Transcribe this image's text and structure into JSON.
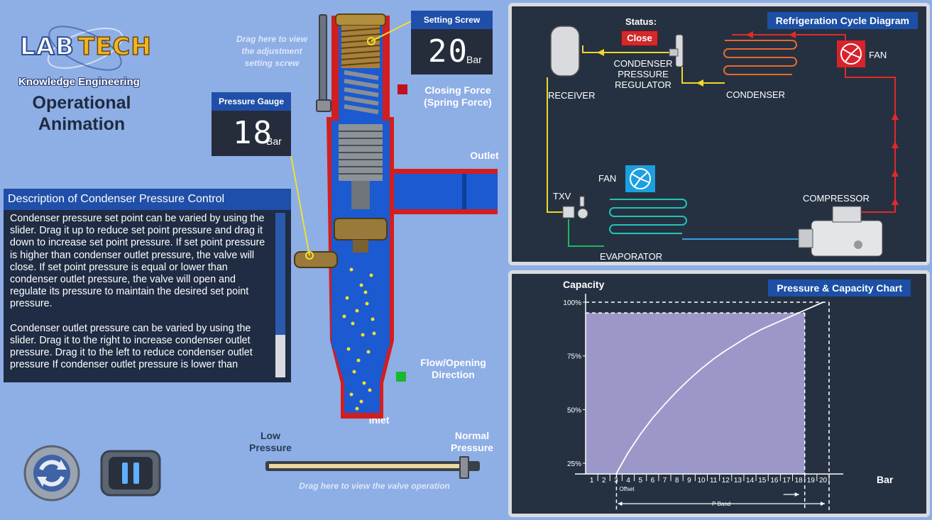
{
  "logo": {
    "part1": "LAB",
    "part2": "TECH",
    "tagline": "Knowledge Engineering"
  },
  "app_title_line1": "Operational",
  "app_title_line2": "Animation",
  "pressure_gauge": {
    "label": "Pressure Gauge",
    "value": "18",
    "unit": "Bar"
  },
  "setting_screw": {
    "label": "Setting Screw",
    "value": "20",
    "unit": "Bar"
  },
  "hint_screw": {
    "line1": "Drag here to view",
    "line2": "the adjustment",
    "line3": "setting screw"
  },
  "closing_force": {
    "line1": "Closing Force",
    "line2": "(Spring Force)",
    "color": "#c0121c"
  },
  "flow_direction": {
    "line1": "Flow/Opening",
    "line2": "Direction",
    "color": "#18b830"
  },
  "outlet_label": "Outlet",
  "inlet_label": "Inlet",
  "description": {
    "title": "Description of Condenser Pressure Control",
    "para1": "Condenser pressure set point can be varied by using the slider. Drag it up to reduce set point pressure and drag it down to increase set point pressure. If set point pressure is higher than condenser outlet pressure, the valve will close. If set point pressure is equal or lower than condenser outlet pressure, the valve will open and regulate its pressure to maintain the desired set point pressure.",
    "para2": "Condenser outlet pressure can be varied by using the slider. Drag it to the right to increase condenser outlet pressure. Drag it to the left to reduce condenser outlet pressure If condenser outlet pressure is lower than"
  },
  "pressure_slider": {
    "low_line1": "Low",
    "low_line2": "Pressure",
    "high_line1": "Normal",
    "high_line2": "Pressure",
    "hint": "Drag here to view the valve operation",
    "level": 0.95
  },
  "refrigeration": {
    "title": "Refrigeration Cycle Diagram",
    "status_label": "Status:",
    "status_value": "Close",
    "receiver": "RECEIVER",
    "regulator_line1": "CONDENSER",
    "regulator_line2": "PRESSURE",
    "regulator_line3": "REGULATOR",
    "condenser": "CONDENSER",
    "fan": "FAN",
    "txv": "TXV",
    "evaporator": "EVAPORATOR",
    "compressor": "COMPRESSOR"
  },
  "capacity_chart": {
    "title": "Pressure & Capacity Chart",
    "ylabel": "Capacity",
    "xlabel": "Bar",
    "offset_label": "Offset",
    "pband_label": "P Band"
  },
  "chart_data": {
    "type": "area",
    "title": "Pressure & Capacity Chart",
    "xlabel": "Bar",
    "ylabel": "Capacity",
    "x_ticks": [
      "1",
      "2",
      "3",
      "4",
      "5",
      "6",
      "7",
      "8",
      "9",
      "10",
      "11",
      "12",
      "13",
      "14",
      "15",
      "16",
      "17",
      "18",
      "19",
      "20"
    ],
    "y_ticks": [
      "25%",
      "50%",
      "75%",
      "100%"
    ],
    "xlim": [
      0,
      20
    ],
    "ylim": [
      20,
      100
    ],
    "series": [
      {
        "x": [
          3,
          4,
          5,
          6,
          7,
          8,
          9,
          10,
          11,
          12,
          13,
          14,
          15,
          16,
          17,
          18,
          19,
          20
        ],
        "y": [
          20,
          30,
          38.5,
          46,
          52.5,
          58.5,
          64,
          69,
          73.5,
          77.5,
          81,
          84.5,
          87.5,
          90,
          92.5,
          95,
          97.5,
          100
        ]
      }
    ],
    "current_pressure": 18,
    "current_capacity": 95,
    "setpoint_pressure": 20,
    "offset_start": 3,
    "pband_range": [
      3,
      20
    ]
  }
}
